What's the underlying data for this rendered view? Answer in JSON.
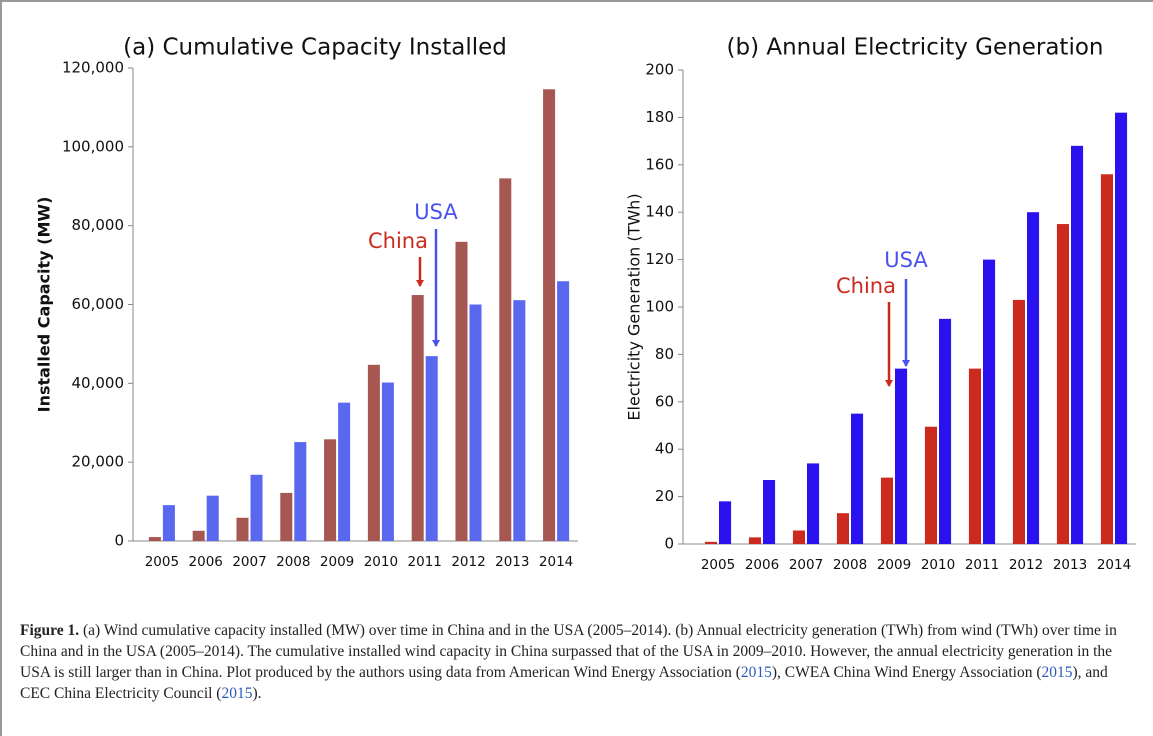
{
  "chart_data": [
    {
      "type": "bar",
      "title": "(a) Cumulative Capacity Installed",
      "y_label": "Installed Capacity (MW)",
      "categories": [
        "2005",
        "2006",
        "2007",
        "2008",
        "2009",
        "2010",
        "2011",
        "2012",
        "2013",
        "2014"
      ],
      "series": [
        {
          "name": "China",
          "color": "#a65752",
          "values": [
            1000,
            2600,
            5900,
            12200,
            25800,
            44700,
            62400,
            75900,
            92000,
            114600
          ]
        },
        {
          "name": "USA",
          "color": "#5a68f0",
          "values": [
            9100,
            11500,
            16800,
            25100,
            35100,
            40200,
            46900,
            60000,
            61100,
            65900
          ]
        }
      ],
      "ylim": [
        0,
        120000
      ],
      "yticks": [
        0,
        {
          "value": 20000,
          "label": "20,000"
        },
        {
          "value": 40000,
          "label": "40,000"
        },
        {
          "value": 60000,
          "label": "60,000"
        },
        {
          "value": 80000,
          "label": "80,000"
        },
        {
          "value": 100000,
          "label": "100,000"
        },
        {
          "value": 120000,
          "label": "120,000"
        }
      ]
    },
    {
      "type": "bar",
      "title": "(b) Annual Electricity Generation",
      "y_label": "Electricity Generation (TWh)",
      "categories": [
        "2005",
        "2006",
        "2007",
        "2008",
        "2009",
        "2010",
        "2011",
        "2012",
        "2013",
        "2014"
      ],
      "series": [
        {
          "name": "China",
          "color": "#cc2a1e",
          "values": [
            0.9,
            2.8,
            5.7,
            13,
            28,
            49.5,
            74,
            103,
            135,
            156
          ]
        },
        {
          "name": "USA",
          "color": "#2a12ee",
          "values": [
            18,
            27,
            34,
            55,
            74,
            95,
            120,
            140,
            168,
            182
          ]
        }
      ],
      "ylim": [
        0,
        200
      ],
      "yticks": [
        0,
        20,
        40,
        60,
        80,
        100,
        120,
        140,
        160,
        180,
        200
      ]
    }
  ],
  "caption": {
    "label": "Figure 1.",
    "text": [
      " (a) Wind cumulative capacity installed (MW) over time in China and in the USA (2005–2014). (b) Annual electricity generation (TWh) from wind (TWh) over time in China and in the USA (2005–2014). The cumulative installed wind capacity in China surpassed that of the USA in 2009–2010. However, the annual electricity generation in the USA is still larger than in China. Plot produced by the authors using data from American Wind Energy Association (",
      "2015",
      "), CWEA China Wind Energy Association (",
      "2015",
      "), and CEC China Electricity Council (",
      "2015",
      ")."
    ]
  }
}
